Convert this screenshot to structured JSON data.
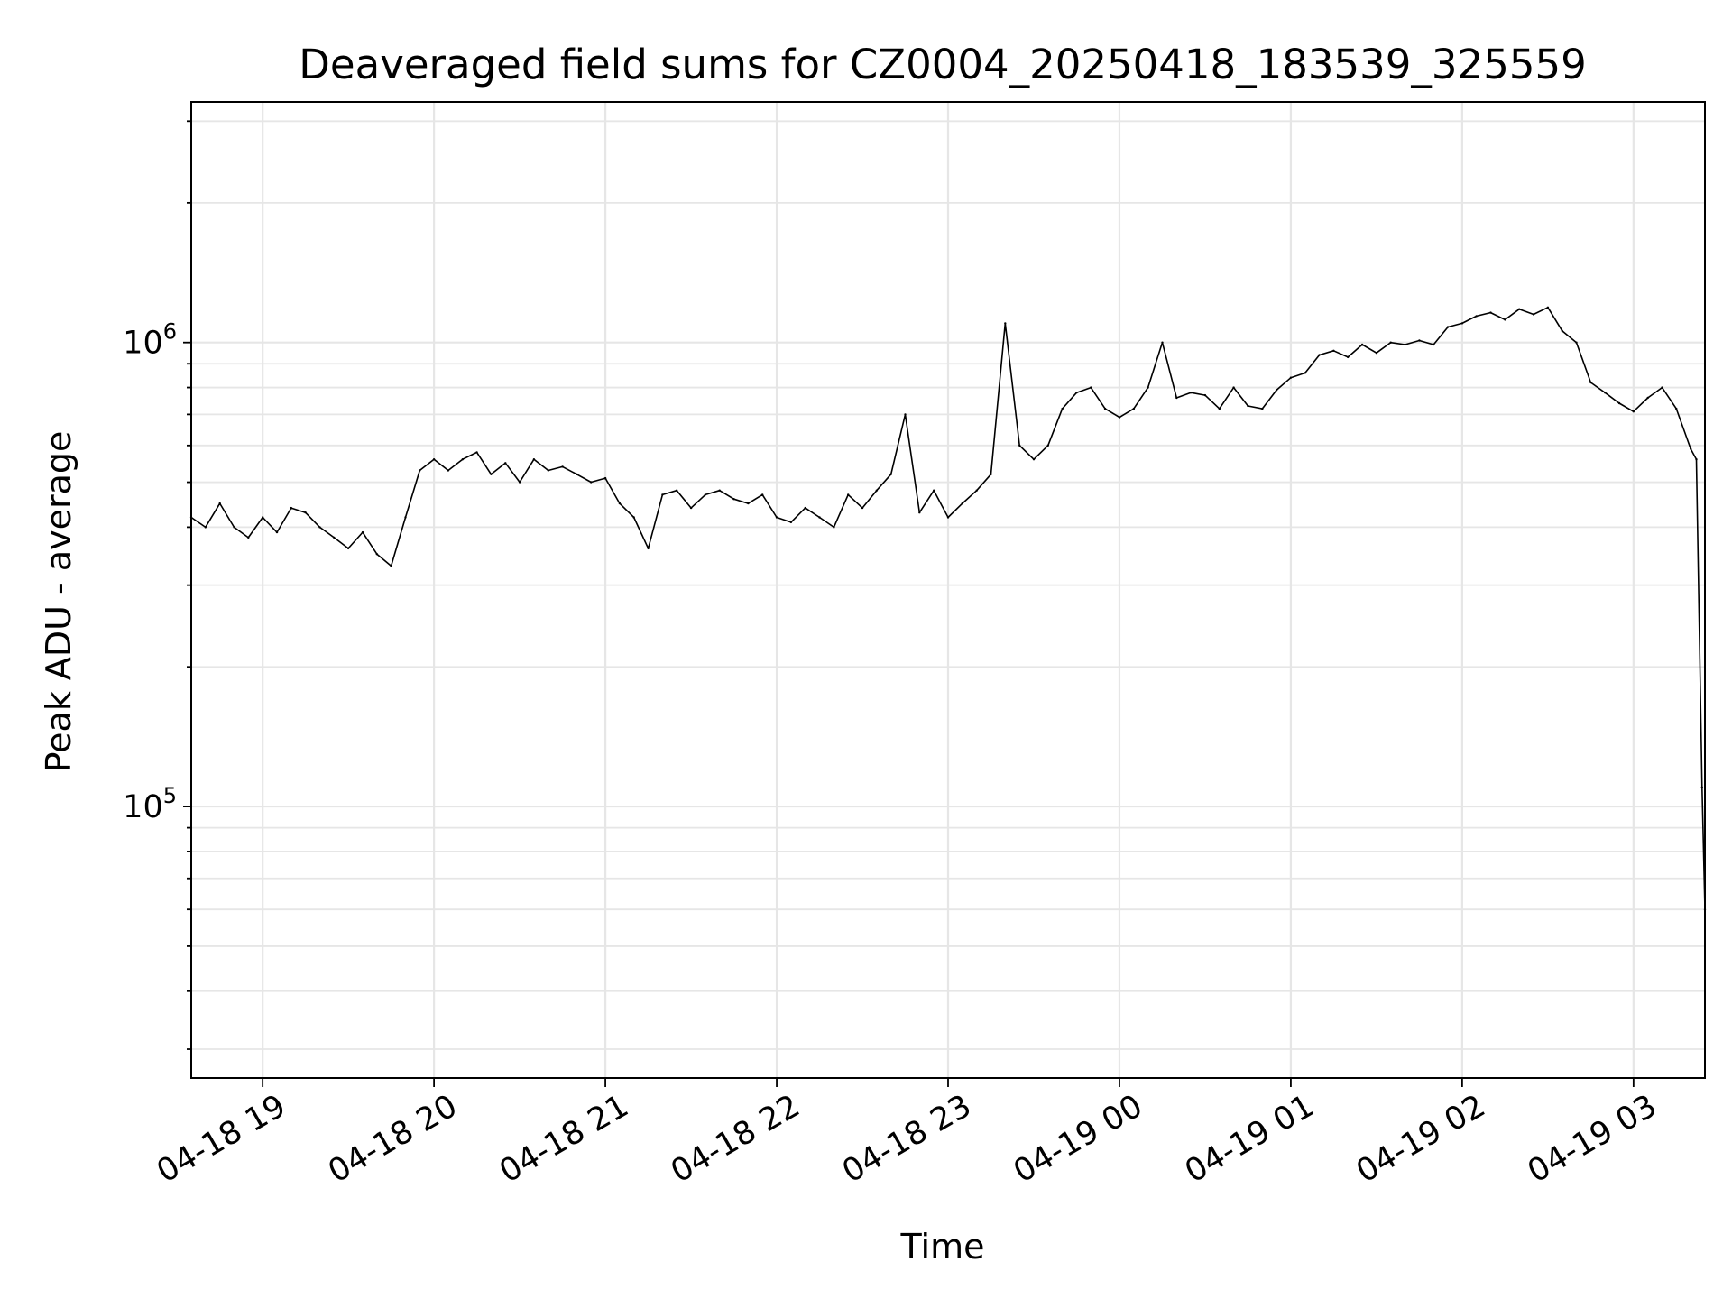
{
  "chart_data": {
    "type": "line",
    "title": "Deaveraged field sums for CZ0004_20250418_183539_325559",
    "xlabel": "Time",
    "ylabel": "Peak ADU - average",
    "yscale": "log",
    "ylim": [
      26000,
      3300000
    ],
    "xlim": [
      "2025-04-18 18:35",
      "2025-04-19 03:25"
    ],
    "grid": true,
    "line_color": "#000000",
    "grid_color": "#e6e6e6",
    "x_ticks": [
      {
        "t": "2025-04-18 19:00",
        "label": "04-18 19"
      },
      {
        "t": "2025-04-18 20:00",
        "label": "04-18 20"
      },
      {
        "t": "2025-04-18 21:00",
        "label": "04-18 21"
      },
      {
        "t": "2025-04-18 22:00",
        "label": "04-18 22"
      },
      {
        "t": "2025-04-18 23:00",
        "label": "04-18 23"
      },
      {
        "t": "2025-04-19 00:00",
        "label": "04-19 00"
      },
      {
        "t": "2025-04-19 01:00",
        "label": "04-19 01"
      },
      {
        "t": "2025-04-19 02:00",
        "label": "04-19 02"
      },
      {
        "t": "2025-04-19 03:00",
        "label": "04-19 03"
      }
    ],
    "y_ticks": [
      {
        "value": 100000,
        "base": "10",
        "exp": "5"
      },
      {
        "value": 1000000,
        "base": "10",
        "exp": "6"
      }
    ],
    "series": [
      {
        "x": [
          "2025-04-18 18:35",
          "2025-04-18 18:40",
          "2025-04-18 18:45",
          "2025-04-18 18:50",
          "2025-04-18 18:55",
          "2025-04-18 19:00",
          "2025-04-18 19:05",
          "2025-04-18 19:10",
          "2025-04-18 19:15",
          "2025-04-18 19:20",
          "2025-04-18 19:25",
          "2025-04-18 19:30",
          "2025-04-18 19:35",
          "2025-04-18 19:40",
          "2025-04-18 19:45",
          "2025-04-18 19:50",
          "2025-04-18 19:55",
          "2025-04-18 20:00",
          "2025-04-18 20:05",
          "2025-04-18 20:10",
          "2025-04-18 20:15",
          "2025-04-18 20:20",
          "2025-04-18 20:25",
          "2025-04-18 20:30",
          "2025-04-18 20:35",
          "2025-04-18 20:40",
          "2025-04-18 20:45",
          "2025-04-18 20:50",
          "2025-04-18 20:55",
          "2025-04-18 21:00",
          "2025-04-18 21:05",
          "2025-04-18 21:10",
          "2025-04-18 21:15",
          "2025-04-18 21:20",
          "2025-04-18 21:25",
          "2025-04-18 21:30",
          "2025-04-18 21:35",
          "2025-04-18 21:40",
          "2025-04-18 21:45",
          "2025-04-18 21:50",
          "2025-04-18 21:55",
          "2025-04-18 22:00",
          "2025-04-18 22:05",
          "2025-04-18 22:10",
          "2025-04-18 22:15",
          "2025-04-18 22:20",
          "2025-04-18 22:25",
          "2025-04-18 22:30",
          "2025-04-18 22:35",
          "2025-04-18 22:40",
          "2025-04-18 22:45",
          "2025-04-18 22:50",
          "2025-04-18 22:55",
          "2025-04-18 23:00",
          "2025-04-18 23:05",
          "2025-04-18 23:10",
          "2025-04-18 23:15",
          "2025-04-18 23:20",
          "2025-04-18 23:25",
          "2025-04-18 23:30",
          "2025-04-18 23:35",
          "2025-04-18 23:40",
          "2025-04-18 23:45",
          "2025-04-18 23:50",
          "2025-04-18 23:55",
          "2025-04-19 00:00",
          "2025-04-19 00:05",
          "2025-04-19 00:10",
          "2025-04-19 00:15",
          "2025-04-19 00:20",
          "2025-04-19 00:25",
          "2025-04-19 00:30",
          "2025-04-19 00:35",
          "2025-04-19 00:40",
          "2025-04-19 00:45",
          "2025-04-19 00:50",
          "2025-04-19 00:55",
          "2025-04-19 01:00",
          "2025-04-19 01:05",
          "2025-04-19 01:10",
          "2025-04-19 01:15",
          "2025-04-19 01:20",
          "2025-04-19 01:25",
          "2025-04-19 01:30",
          "2025-04-19 01:35",
          "2025-04-19 01:40",
          "2025-04-19 01:45",
          "2025-04-19 01:50",
          "2025-04-19 01:55",
          "2025-04-19 02:00",
          "2025-04-19 02:05",
          "2025-04-19 02:10",
          "2025-04-19 02:15",
          "2025-04-19 02:20",
          "2025-04-19 02:25",
          "2025-04-19 02:30",
          "2025-04-19 02:35",
          "2025-04-19 02:40",
          "2025-04-19 02:45",
          "2025-04-19 02:50",
          "2025-04-19 02:55",
          "2025-04-19 03:00",
          "2025-04-19 03:05",
          "2025-04-19 03:10",
          "2025-04-19 03:15",
          "2025-04-19 03:20",
          "2025-04-19 03:22",
          "2025-04-19 03:24",
          "2025-04-19 03:25"
        ],
        "values": [
          420000,
          400000,
          450000,
          400000,
          380000,
          420000,
          390000,
          440000,
          430000,
          400000,
          380000,
          360000,
          390000,
          350000,
          330000,
          420000,
          530000,
          560000,
          530000,
          560000,
          580000,
          520000,
          550000,
          500000,
          560000,
          530000,
          540000,
          520000,
          500000,
          510000,
          450000,
          420000,
          360000,
          470000,
          480000,
          440000,
          470000,
          480000,
          460000,
          450000,
          470000,
          420000,
          410000,
          440000,
          420000,
          400000,
          470000,
          440000,
          480000,
          520000,
          700000,
          430000,
          480000,
          420000,
          450000,
          480000,
          520000,
          1100000,
          600000,
          560000,
          600000,
          720000,
          780000,
          800000,
          720000,
          690000,
          720000,
          800000,
          1000000,
          760000,
          780000,
          770000,
          720000,
          800000,
          730000,
          720000,
          790000,
          840000,
          860000,
          940000,
          960000,
          930000,
          990000,
          950000,
          1000000,
          990000,
          1010000,
          990000,
          1080000,
          1100000,
          1140000,
          1160000,
          1120000,
          1180000,
          1150000,
          1190000,
          1060000,
          1000000,
          820000,
          780000,
          740000,
          710000,
          760000,
          800000,
          720000,
          590000,
          560000,
          110000,
          60000
        ]
      }
    ]
  }
}
